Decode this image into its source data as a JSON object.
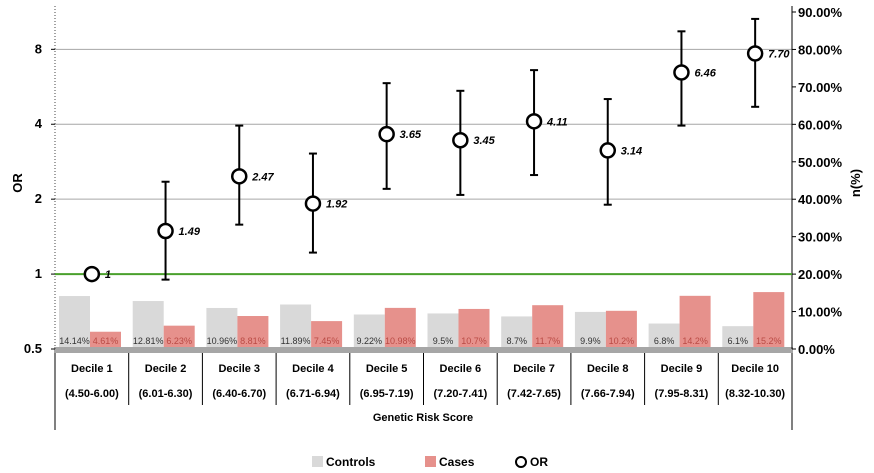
{
  "chart_data": {
    "type": "bar",
    "title": "",
    "xlabel": "Genetic Risk Score",
    "ylabel_left": "OR",
    "ylabel_right": "n(%)",
    "left_axis": {
      "scale": "log2",
      "ylim": [
        0.5,
        11.3
      ],
      "ticks": [
        "0.5",
        "1",
        "2",
        "4",
        "8"
      ],
      "tick_values": [
        0.5,
        1,
        2,
        4,
        8
      ]
    },
    "right_axis": {
      "ylim": [
        0,
        90
      ],
      "ticks": [
        "0.00%",
        "10.00%",
        "20.00%",
        "30.00%",
        "40.00%",
        "50.00%",
        "60.00%",
        "70.00%",
        "80.00%",
        "90.00%"
      ]
    },
    "reference_line": 1,
    "grid": true,
    "legend": {
      "position": "bottom",
      "items": [
        "Controls",
        "Cases",
        "OR"
      ]
    },
    "categories": [
      "Decile 1",
      "Decile 2",
      "Decile 3",
      "Decile 4",
      "Decile 5",
      "Decile 6",
      "Decile 7",
      "Decile 8",
      "Decile 9",
      "Decile 10"
    ],
    "ranges": [
      "(4.50-6.00)",
      "(6.01-6.30)",
      "(6.40-6.70)",
      "(6.71-6.94)",
      "(6.95-7.19)",
      "(7.20-7.41)",
      "(7.42-7.65)",
      "(7.66-7.94)",
      "(7.95-8.31)",
      "(8.32-10.30)"
    ],
    "series": [
      {
        "name": "Controls",
        "color": "#d9d9d9",
        "axis": "right",
        "values": [
          14.14,
          12.81,
          10.96,
          11.89,
          9.22,
          9.5,
          8.7,
          9.9,
          6.8,
          6.1
        ],
        "labels": [
          "14.14%",
          "12.81%",
          "10.96%",
          "11.89%",
          "9.22%",
          "9.5%",
          "8.7%",
          "9.9%",
          "6.8%",
          "6.1%"
        ]
      },
      {
        "name": "Cases",
        "color": "#e6918c",
        "axis": "right",
        "values": [
          4.61,
          6.23,
          8.81,
          7.45,
          10.98,
          10.7,
          11.7,
          10.2,
          14.2,
          15.2
        ],
        "labels": [
          "4.61%",
          "6.23%",
          "8.81%",
          "7.45%",
          "10.98%",
          "10.7%",
          "11.7%",
          "10.2%",
          "14.2%",
          "15.2%"
        ]
      },
      {
        "name": "OR",
        "type": "scatter",
        "axis": "left",
        "values": [
          1,
          1.49,
          2.47,
          1.92,
          3.65,
          3.45,
          4.11,
          3.14,
          6.46,
          7.7
        ],
        "labels": [
          "1",
          "1.49",
          "2.47",
          "1.92",
          "3.65",
          "3.45",
          "4.11",
          "3.14",
          "6.46",
          "7.70"
        ],
        "ci_lower": [
          null,
          0.95,
          1.58,
          1.22,
          2.2,
          2.08,
          2.5,
          1.9,
          3.95,
          4.7
        ],
        "ci_upper": [
          null,
          2.35,
          3.95,
          3.05,
          5.85,
          5.45,
          6.6,
          5.05,
          9.45,
          10.6
        ]
      }
    ],
    "colors": {
      "grid": "#a6a6a6",
      "reference": "#4aa02c",
      "floor": "#a6a6a6",
      "ink": "#000000"
    }
  }
}
